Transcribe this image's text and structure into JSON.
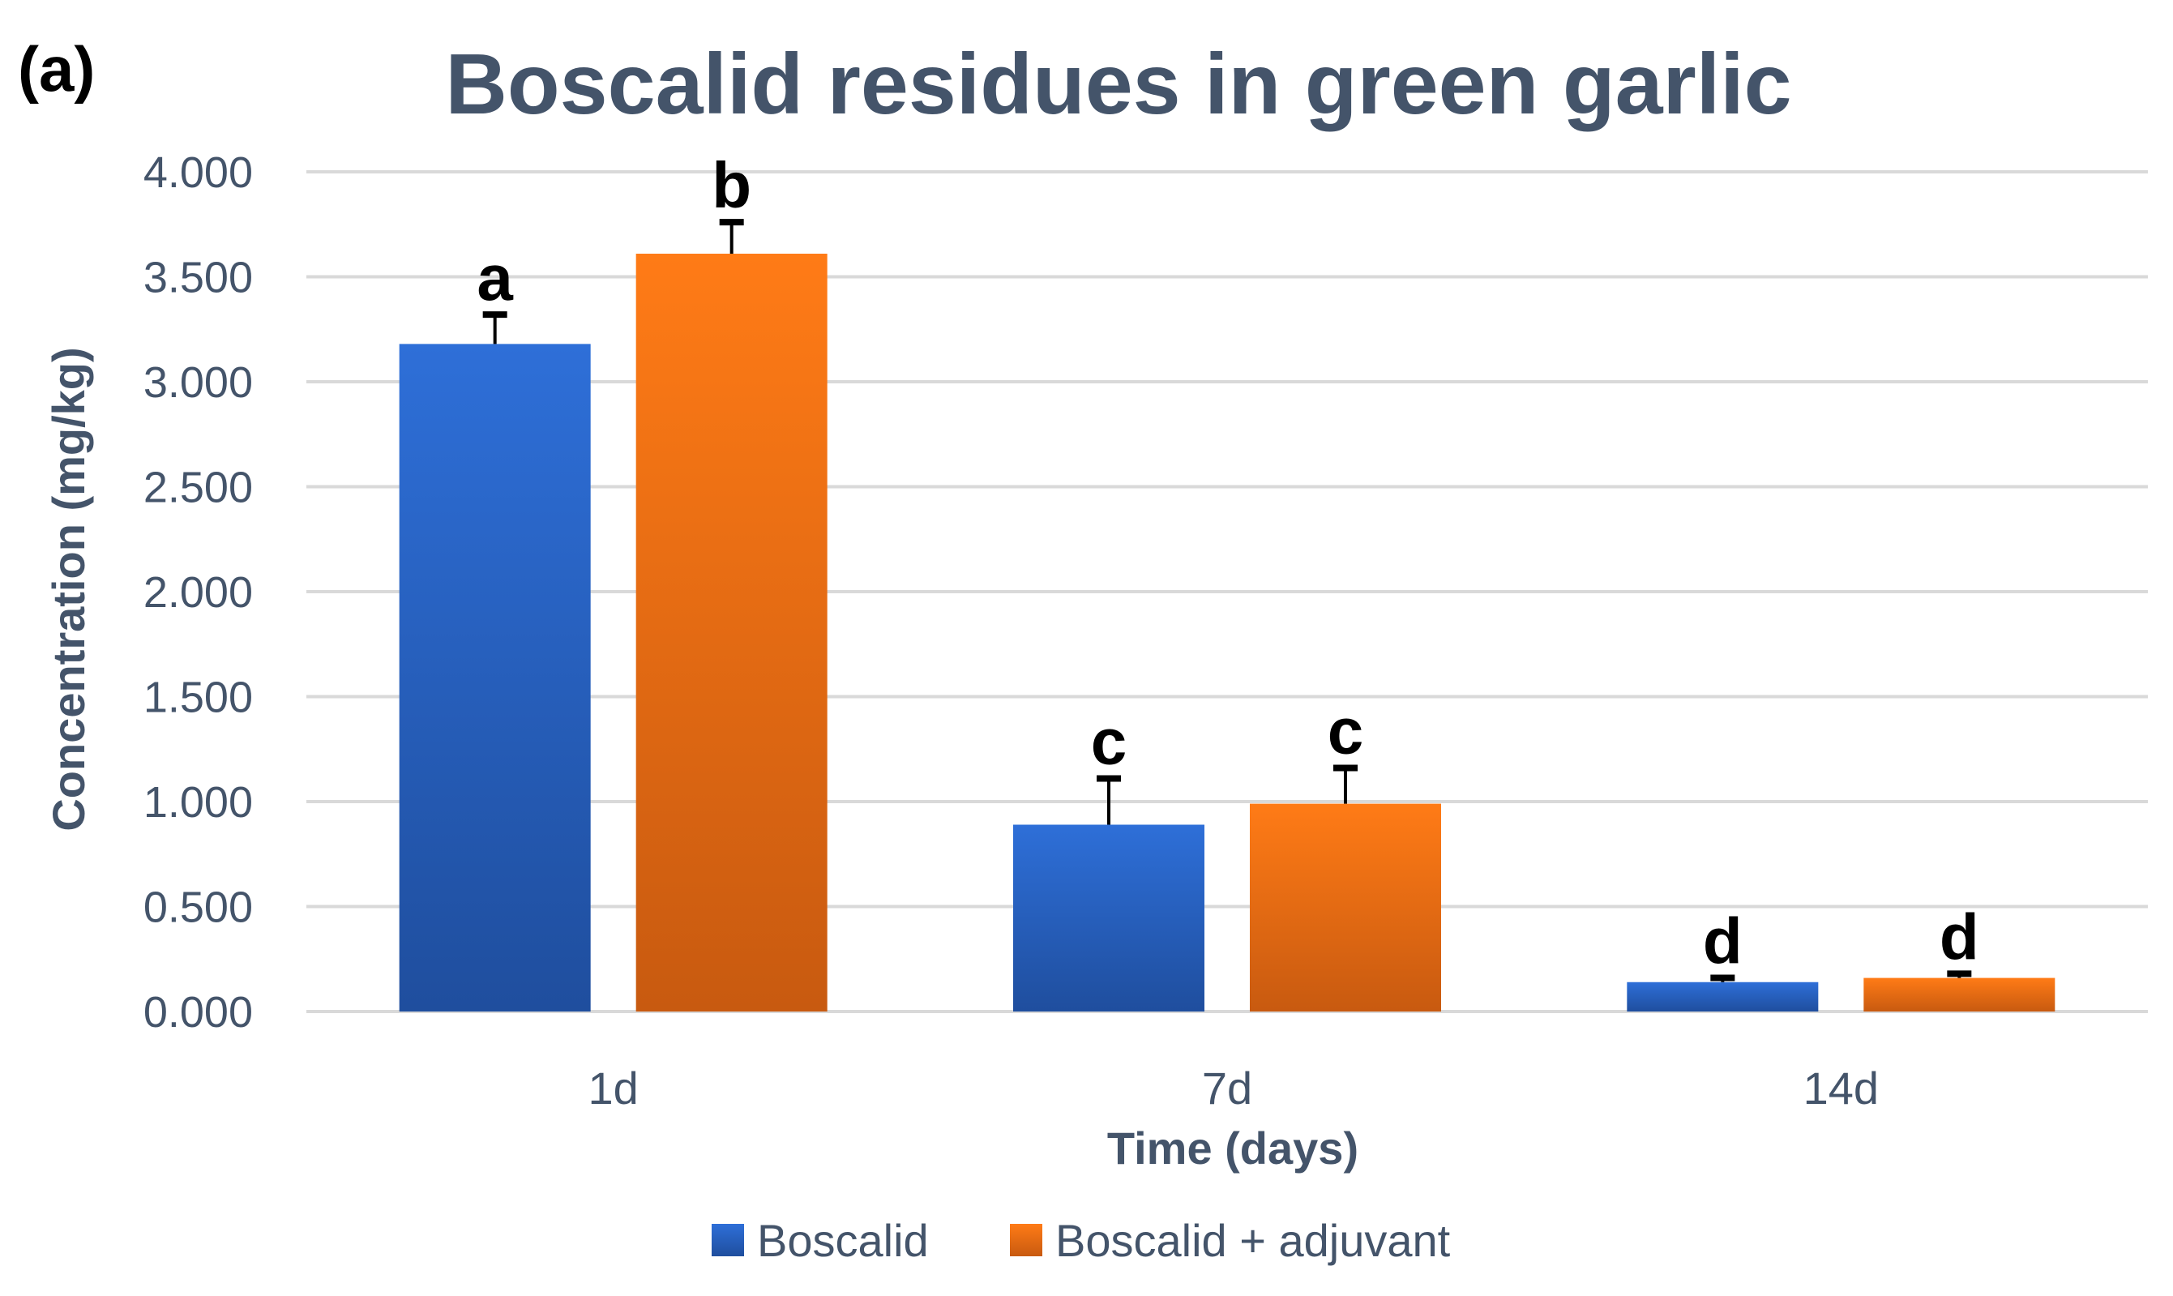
{
  "panel_label": "(a)",
  "chart_data": {
    "type": "bar",
    "title": "Boscalid residues in green garlic",
    "xlabel": "Time (days)",
    "ylabel": "Concentration (mg/kg)",
    "categories": [
      "1d",
      "7d",
      "14d"
    ],
    "ylim": [
      0,
      4
    ],
    "yticks": [
      0,
      0.5,
      1,
      1.5,
      2,
      2.5,
      3,
      3.5,
      4
    ],
    "ytick_labels": [
      "0.000",
      "0.500",
      "1.000",
      "1.500",
      "2.000",
      "2.500",
      "3.000",
      "3.500",
      "4.000"
    ],
    "grid": true,
    "legend_position": "bottom",
    "series": [
      {
        "name": "Boscalid",
        "color": "#2e6fd8",
        "color_dark": "#1f4e9e",
        "values": [
          3.18,
          0.89,
          0.14
        ],
        "errors": [
          0.14,
          0.22,
          0.02
        ],
        "letters": [
          "a",
          "c",
          "d"
        ]
      },
      {
        "name": "Boscalid + adjuvant",
        "color": "#ff7b16",
        "color_dark": "#c85a10",
        "values": [
          3.61,
          0.99,
          0.16
        ],
        "errors": [
          0.15,
          0.17,
          0.02
        ],
        "letters": [
          "b",
          "c",
          "d"
        ]
      }
    ]
  }
}
